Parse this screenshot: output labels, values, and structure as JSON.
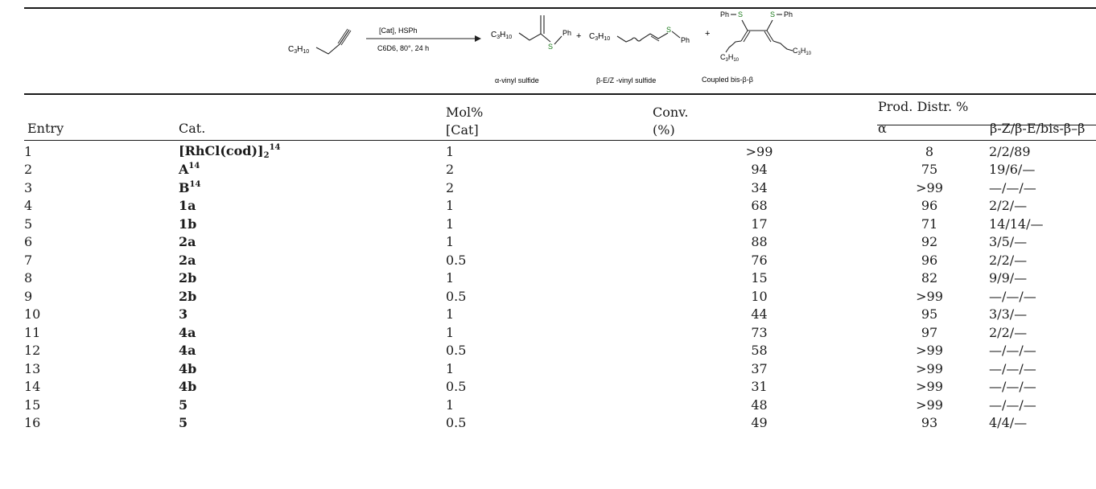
{
  "scheme": {
    "alkyne_label": "C3H10",
    "reagent_above": "[Cat],   HSPh",
    "reagent_below": "C6D6, 80°, 24 h",
    "product_alpha_name": "α-vinyl sulfide",
    "product_beta_name": "β-E/Z -vinyl sulfide",
    "product_bis_name": "Coupled bis-β-β",
    "plus": "+"
  },
  "header": {
    "entry": "Entry",
    "cat": "Cat.",
    "mol_line1": "Mol%",
    "mol_line2": "[Cat]",
    "conv_line1": "Conv.",
    "conv_line2": "(%)",
    "prod_distr": "Prod. Distr. %",
    "alpha": "α",
    "beta": "β-Z/β-E/bis-β–β"
  },
  "rows": [
    {
      "entry": "1",
      "cat": "[RhCl(cod)]",
      "cat_sub": "2",
      "cat_ref": "14",
      "mol": "1",
      "conv": ">99",
      "alpha": "8",
      "beta": "2/2/89"
    },
    {
      "entry": "2",
      "cat": "A",
      "cat_sub": "",
      "cat_ref": "14",
      "mol": "2",
      "conv": "94",
      "alpha": "75",
      "beta": "19/6/—"
    },
    {
      "entry": "3",
      "cat": "B",
      "cat_sub": "",
      "cat_ref": "14",
      "mol": "2",
      "conv": "34",
      "alpha": ">99",
      "beta": "—/—/—"
    },
    {
      "entry": "4",
      "cat": "1a",
      "cat_sub": "",
      "cat_ref": "",
      "mol": "1",
      "conv": "68",
      "alpha": "96",
      "beta": "2/2/—"
    },
    {
      "entry": "5",
      "cat": "1b",
      "cat_sub": "",
      "cat_ref": "",
      "mol": "1",
      "conv": "17",
      "alpha": "71",
      "beta": "14/14/—"
    },
    {
      "entry": "6",
      "cat": "2a",
      "cat_sub": "",
      "cat_ref": "",
      "mol": "1",
      "conv": "88",
      "alpha": "92",
      "beta": "3/5/—"
    },
    {
      "entry": "7",
      "cat": "2a",
      "cat_sub": "",
      "cat_ref": "",
      "mol": "0.5",
      "conv": "76",
      "alpha": "96",
      "beta": "2/2/—"
    },
    {
      "entry": "8",
      "cat": "2b",
      "cat_sub": "",
      "cat_ref": "",
      "mol": "1",
      "conv": "15",
      "alpha": "82",
      "beta": "9/9/—"
    },
    {
      "entry": "9",
      "cat": "2b",
      "cat_sub": "",
      "cat_ref": "",
      "mol": "0.5",
      "conv": "10",
      "alpha": ">99",
      "beta": "—/—/—"
    },
    {
      "entry": "10",
      "cat": "3",
      "cat_sub": "",
      "cat_ref": "",
      "mol": "1",
      "conv": "44",
      "alpha": "95",
      "beta": "3/3/—"
    },
    {
      "entry": "11",
      "cat": "4a",
      "cat_sub": "",
      "cat_ref": "",
      "mol": "1",
      "conv": "73",
      "alpha": "97",
      "beta": "2/2/—"
    },
    {
      "entry": "12",
      "cat": "4a",
      "cat_sub": "",
      "cat_ref": "",
      "mol": "0.5",
      "conv": "58",
      "alpha": ">99",
      "beta": "—/—/—"
    },
    {
      "entry": "13",
      "cat": "4b",
      "cat_sub": "",
      "cat_ref": "",
      "mol": "1",
      "conv": "37",
      "alpha": ">99",
      "beta": "—/—/—"
    },
    {
      "entry": "14",
      "cat": "4b",
      "cat_sub": "",
      "cat_ref": "",
      "mol": "0.5",
      "conv": "31",
      "alpha": ">99",
      "beta": "—/—/—"
    },
    {
      "entry": "15",
      "cat": "5",
      "cat_sub": "",
      "cat_ref": "",
      "mol": "1",
      "conv": "48",
      "alpha": ">99",
      "beta": "—/—/—"
    },
    {
      "entry": "16",
      "cat": "5",
      "cat_sub": "",
      "cat_ref": "",
      "mol": "0.5",
      "conv": "49",
      "alpha": "93",
      "beta": "4/4/—"
    }
  ]
}
